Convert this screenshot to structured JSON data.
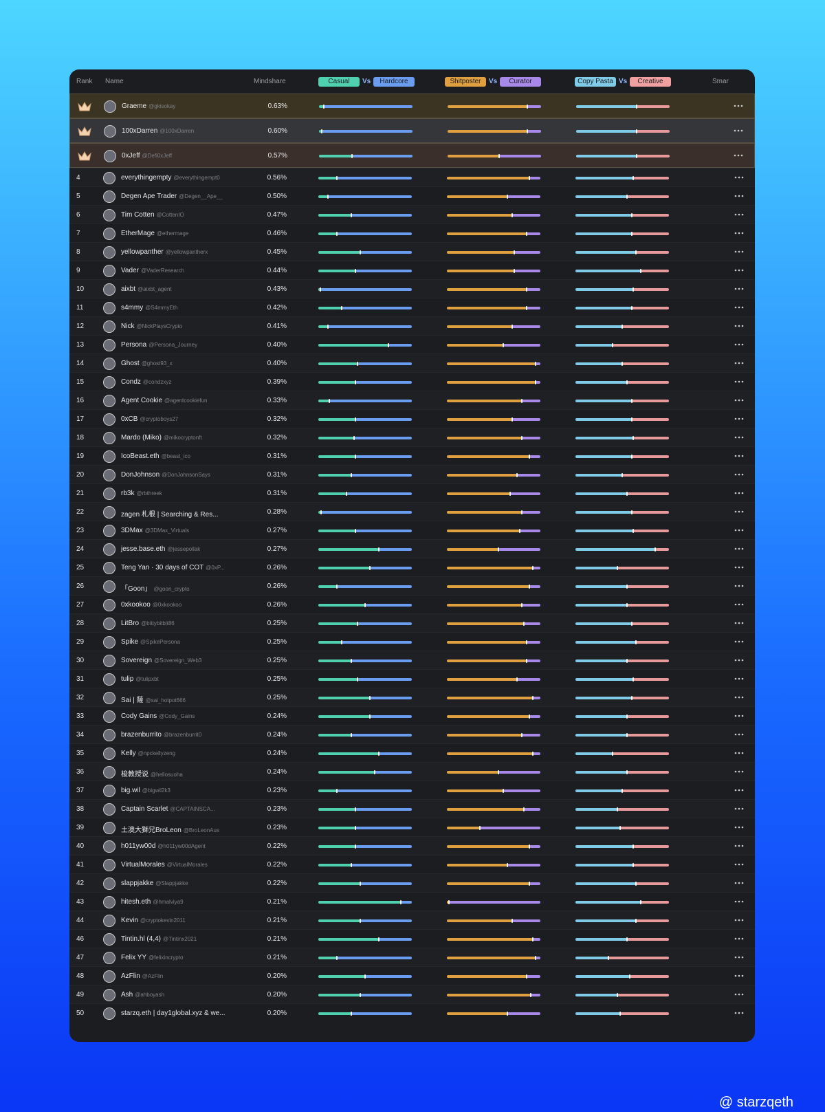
{
  "header": {
    "rank": "Rank",
    "name": "Name",
    "mindshare": "Mindshare",
    "casual": "Casual",
    "vs1": "Vs",
    "hardcore": "Hardcore",
    "shitposter": "Shitposter",
    "vs2": "Vs",
    "curator": "Curator",
    "copypasta": "Copy Pasta",
    "vs3": "Vs",
    "creative": "Creative",
    "smart": "Smar"
  },
  "table": {
    "rows": [
      {
        "name": "Graeme",
        "handle": "@gkisokay",
        "mindshare": "0.63%",
        "casual": 5,
        "shitposter": 85,
        "copypasta": 65
      },
      {
        "name": "100xDarren",
        "handle": "@100xDarren",
        "mindshare": "0.60%",
        "casual": 3,
        "shitposter": 85,
        "copypasta": 65
      },
      {
        "name": "0xJeff",
        "handle": "@Defi0xJeff",
        "mindshare": "0.57%",
        "casual": 35,
        "shitposter": 55,
        "copypasta": 65
      },
      {
        "rank": 4,
        "name": "everythingempty",
        "handle": "@everythingempt0",
        "mindshare": "0.56%",
        "casual": 20,
        "shitposter": 88,
        "copypasta": 62
      },
      {
        "rank": 5,
        "name": "Degen Ape Trader",
        "handle": "@Degen__Ape__",
        "mindshare": "0.50%",
        "casual": 10,
        "shitposter": 65,
        "copypasta": 55
      },
      {
        "rank": 6,
        "name": "Tim Cotten",
        "handle": "@CottenIO",
        "mindshare": "0.47%",
        "casual": 35,
        "shitposter": 70,
        "copypasta": 60
      },
      {
        "rank": 7,
        "name": "EtherMage",
        "handle": "@ethermage",
        "mindshare": "0.46%",
        "casual": 20,
        "shitposter": 85,
        "copypasta": 60
      },
      {
        "rank": 8,
        "name": "yellowpanther",
        "handle": "@yellowpantherx",
        "mindshare": "0.45%",
        "casual": 45,
        "shitposter": 72,
        "copypasta": 65
      },
      {
        "rank": 9,
        "name": "Vader",
        "handle": "@VaderResearch",
        "mindshare": "0.44%",
        "casual": 40,
        "shitposter": 72,
        "copypasta": 70
      },
      {
        "rank": 10,
        "name": "aixbt",
        "handle": "@aixbt_agent",
        "mindshare": "0.43%",
        "casual": 2,
        "shitposter": 85,
        "copypasta": 62
      },
      {
        "rank": 11,
        "name": "s4mmy",
        "handle": "@S4mmyEth",
        "mindshare": "0.42%",
        "casual": 25,
        "shitposter": 85,
        "copypasta": 60
      },
      {
        "rank": 12,
        "name": "Nick",
        "handle": "@NickPlaysCrypto",
        "mindshare": "0.41%",
        "casual": 10,
        "shitposter": 70,
        "copypasta": 50
      },
      {
        "rank": 13,
        "name": "Persona",
        "handle": "@Persona_Journey",
        "mindshare": "0.40%",
        "casual": 75,
        "shitposter": 60,
        "copypasta": 40
      },
      {
        "rank": 14,
        "name": "Ghost",
        "handle": "@ghost93_x",
        "mindshare": "0.40%",
        "casual": 42,
        "shitposter": 95,
        "copypasta": 50
      },
      {
        "rank": 15,
        "name": "Condz",
        "handle": "@condzxyz",
        "mindshare": "0.39%",
        "casual": 40,
        "shitposter": 95,
        "copypasta": 55
      },
      {
        "rank": 16,
        "name": "Agent Cookie",
        "handle": "@agentcookiefun",
        "mindshare": "0.33%",
        "casual": 12,
        "shitposter": 80,
        "copypasta": 60
      },
      {
        "rank": 17,
        "name": "0xCB",
        "handle": "@cryptoboys27",
        "mindshare": "0.32%",
        "casual": 40,
        "shitposter": 70,
        "copypasta": 60
      },
      {
        "rank": 18,
        "name": "Mardo (Miko)",
        "handle": "@mikocryptonft",
        "mindshare": "0.32%",
        "casual": 38,
        "shitposter": 80,
        "copypasta": 62
      },
      {
        "rank": 19,
        "name": "IcoBeast.eth",
        "handle": "@beast_ico",
        "mindshare": "0.31%",
        "casual": 40,
        "shitposter": 88,
        "copypasta": 60
      },
      {
        "rank": 20,
        "name": "DonJohnson",
        "handle": "@DonJohnsonSays",
        "mindshare": "0.31%",
        "casual": 35,
        "shitposter": 75,
        "copypasta": 50
      },
      {
        "rank": 21,
        "name": "rb3k",
        "handle": "@rbthreek",
        "mindshare": "0.31%",
        "casual": 30,
        "shitposter": 68,
        "copypasta": 55
      },
      {
        "rank": 22,
        "name": "zagen 札根 | Searching & Res...",
        "mindshare": "0.28%",
        "casual": 3,
        "shitposter": 80,
        "copypasta": 60
      },
      {
        "rank": 23,
        "name": "3DMax",
        "handle": "@3DMax_Virtuals",
        "mindshare": "0.27%",
        "casual": 40,
        "shitposter": 78,
        "copypasta": 62
      },
      {
        "rank": 24,
        "name": "jesse.base.eth",
        "handle": "@jessepollak",
        "mindshare": "0.27%",
        "casual": 65,
        "shitposter": 55,
        "copypasta": 85
      },
      {
        "rank": 25,
        "name": "Teng Yan · 30 days of COT",
        "handle": "@0xP...",
        "mindshare": "0.26%",
        "casual": 55,
        "shitposter": 92,
        "copypasta": 45
      },
      {
        "rank": 26,
        "name": "「Goon」",
        "handle": "@goon_crypto",
        "mindshare": "0.26%",
        "casual": 20,
        "shitposter": 88,
        "copypasta": 55
      },
      {
        "rank": 27,
        "name": "0xkookoo",
        "handle": "@0xkookoo",
        "mindshare": "0.26%",
        "casual": 50,
        "shitposter": 80,
        "copypasta": 55
      },
      {
        "rank": 28,
        "name": "LitBro",
        "handle": "@bittybitbit86",
        "mindshare": "0.25%",
        "casual": 42,
        "shitposter": 82,
        "copypasta": 60
      },
      {
        "rank": 29,
        "name": "Spike",
        "handle": "@SpikePersona",
        "mindshare": "0.25%",
        "casual": 25,
        "shitposter": 85,
        "copypasta": 65
      },
      {
        "rank": 30,
        "name": "Sovereign",
        "handle": "@Sovereign_Web3",
        "mindshare": "0.25%",
        "casual": 35,
        "shitposter": 85,
        "copypasta": 55
      },
      {
        "rank": 31,
        "name": "tulip",
        "handle": "@tulipxbt",
        "mindshare": "0.25%",
        "casual": 42,
        "shitposter": 75,
        "copypasta": 62
      },
      {
        "rank": 32,
        "name": "Sai | 薩",
        "handle": "@sai_hotpot666",
        "mindshare": "0.25%",
        "casual": 55,
        "shitposter": 92,
        "copypasta": 60
      },
      {
        "rank": 33,
        "name": "Cody Gains",
        "handle": "@Cody_Gains",
        "mindshare": "0.24%",
        "casual": 55,
        "shitposter": 88,
        "copypasta": 55
      },
      {
        "rank": 34,
        "name": "brazenburrito",
        "handle": "@brazenburrit0",
        "mindshare": "0.24%",
        "casual": 35,
        "shitposter": 80,
        "copypasta": 55
      },
      {
        "rank": 35,
        "name": "Kelly",
        "handle": "@npckellyzeng",
        "mindshare": "0.24%",
        "casual": 65,
        "shitposter": 92,
        "copypasta": 40
      },
      {
        "rank": 36,
        "name": "梭教授说",
        "handle": "@hellosuoha",
        "mindshare": "0.24%",
        "casual": 60,
        "shitposter": 55,
        "copypasta": 55
      },
      {
        "rank": 37,
        "name": "big.wil",
        "handle": "@bigwil2k3",
        "mindshare": "0.23%",
        "casual": 20,
        "shitposter": 60,
        "copypasta": 50
      },
      {
        "rank": 38,
        "name": "Captain Scarlet",
        "handle": "@CAPTAINSCA...",
        "mindshare": "0.23%",
        "casual": 40,
        "shitposter": 82,
        "copypasta": 45
      },
      {
        "rank": 39,
        "name": "土澳大獅兄BroLeon",
        "handle": "@BroLeonAus",
        "mindshare": "0.23%",
        "casual": 40,
        "shitposter": 35,
        "copypasta": 48
      },
      {
        "rank": 40,
        "name": "h011yw00d",
        "handle": "@h011yw00dAgent",
        "mindshare": "0.22%",
        "casual": 40,
        "shitposter": 88,
        "copypasta": 62
      },
      {
        "rank": 41,
        "name": "VirtualMorales",
        "handle": "@VirtualMorales",
        "mindshare": "0.22%",
        "casual": 35,
        "shitposter": 65,
        "copypasta": 62
      },
      {
        "rank": 42,
        "name": "slappjakke",
        "handle": "@Slappjakke",
        "mindshare": "0.22%",
        "casual": 45,
        "shitposter": 88,
        "copypasta": 65
      },
      {
        "rank": 43,
        "name": "hitesh.eth",
        "handle": "@hmalviya9",
        "mindshare": "0.21%",
        "casual": 88,
        "shitposter": 2,
        "copypasta": 70
      },
      {
        "rank": 44,
        "name": "Kevin",
        "handle": "@cryptokevin2011",
        "mindshare": "0.21%",
        "casual": 45,
        "shitposter": 70,
        "copypasta": 65
      },
      {
        "rank": 46,
        "name": "Tintin.hl (4,4)",
        "handle": "@Tintinx2021",
        "mindshare": "0.21%",
        "casual": 65,
        "shitposter": 92,
        "copypasta": 55
      },
      {
        "rank": 47,
        "name": "Felix YY",
        "handle": "@felixincrypto",
        "mindshare": "0.21%",
        "casual": 20,
        "shitposter": 95,
        "copypasta": 35
      },
      {
        "rank": 48,
        "name": "AzFlin",
        "handle": "@AzFlin",
        "mindshare": "0.20%",
        "casual": 50,
        "shitposter": 85,
        "copypasta": 58
      },
      {
        "rank": 49,
        "name": "Ash",
        "handle": "@ahboyash",
        "mindshare": "0.20%",
        "casual": 45,
        "shitposter": 90,
        "copypasta": 45
      },
      {
        "rank": 50,
        "name": "starzq.eth | day1global.xyz & we...",
        "mindshare": "0.20%",
        "casual": 35,
        "shitposter": 65,
        "copypasta": 48
      }
    ]
  },
  "footer": {
    "credit": "@ starzqeth"
  }
}
